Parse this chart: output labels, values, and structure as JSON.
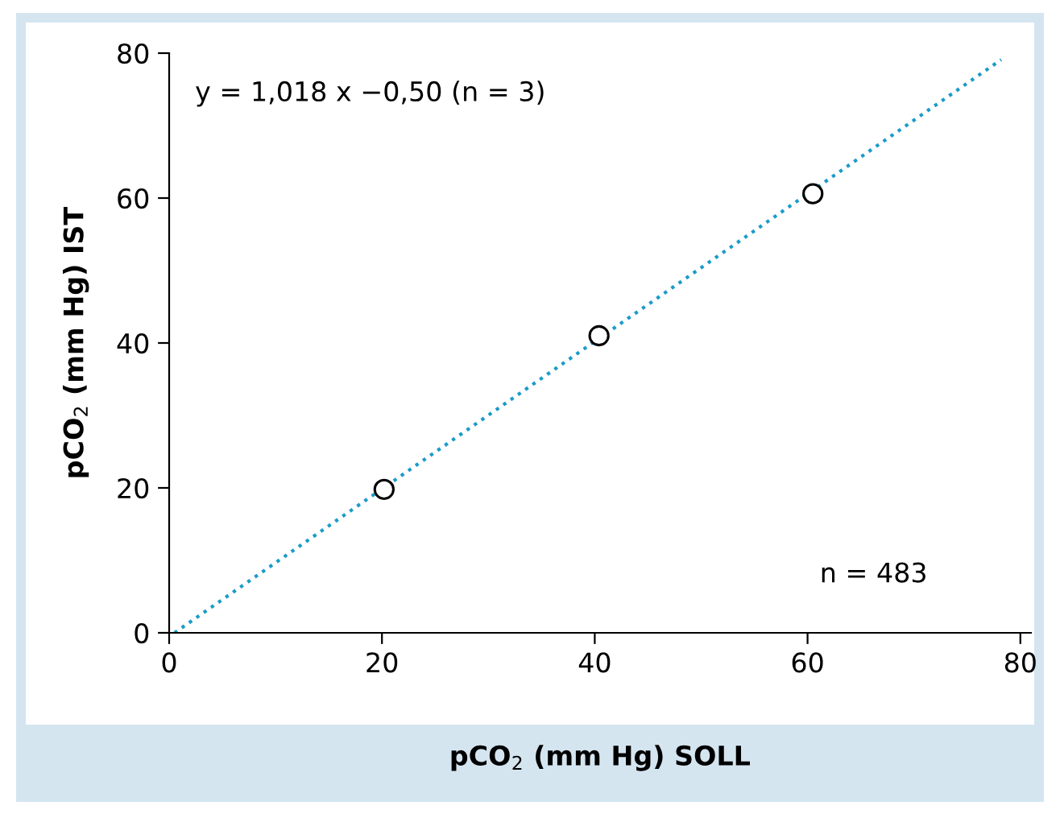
{
  "chart_data": {
    "type": "scatter",
    "xlabel": "pCO$_{2}$ (mm Hg) SOLL",
    "ylabel": "pCO$_{2}$ (mm Hg) IST",
    "xlim": [
      0,
      81
    ],
    "ylim": [
      0,
      80
    ],
    "xticks": [
      0,
      20,
      40,
      60,
      80
    ],
    "yticks": [
      0,
      20,
      40,
      60,
      80
    ],
    "grid": false,
    "legend": false,
    "series": [
      {
        "marker": "circle",
        "color": "#000000",
        "x": [
          20.2,
          40.4,
          60.5
        ],
        "values": [
          19.8,
          41.0,
          60.6
        ]
      },
      {
        "type": "line",
        "marker": "none",
        "color": "#1a9bc9",
        "line_style": "dotted",
        "x": [
          0.5,
          78.2
        ],
        "values": [
          0,
          79.1
        ]
      }
    ],
    "annotations": [
      "y = 1,018 x −0,50 (n = 3)",
      "n = 483"
    ]
  }
}
